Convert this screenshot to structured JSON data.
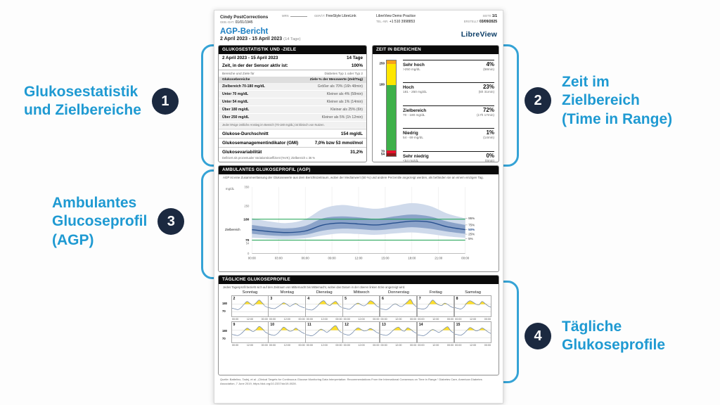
{
  "annotations": {
    "a1": {
      "number": "1",
      "lines": [
        "Glukosestatistik",
        "und Zielbereiche"
      ]
    },
    "a2": {
      "number": "2",
      "lines": [
        "Zeit im",
        "Zielbereich",
        "(Time in Range)"
      ]
    },
    "a3": {
      "number": "3",
      "lines": [
        "Ambulantes",
        "Glucoseprofil",
        "(AGP)"
      ]
    },
    "a4": {
      "number": "4",
      "lines": [
        "Tägliche",
        "Glukoseprofile"
      ]
    }
  },
  "colors": {
    "annotation_blue": "#1f9ad2",
    "bracket_blue": "#35a3d6",
    "badge_navy": "#1b2940",
    "title_blue": "#1a7ec2",
    "logo_navy": "#0b3d66",
    "very_high_orange": "#f7a21b",
    "high_yellow": "#ffe600",
    "target_green": "#3eb049",
    "low_red": "#e8112d",
    "very_low_maroon": "#8e1b1b",
    "median_blue": "#27508e"
  },
  "report_header": {
    "patient_name": "Cindy PostCorrections",
    "dob_label": "GEB.-DAT.",
    "dob": "01/01/1945",
    "mrn_label": "MRN",
    "device_label": "GERÄT:",
    "device": "FreeStyle LibreLink",
    "practice": "LibreView Demo Practice",
    "phone_label": "TEL.-NR.",
    "phone": "+1 510 3998853",
    "page_label": "SEITE",
    "page_value": "1/1",
    "created_label": "ERSTELLT",
    "created_value": "03/09/2025",
    "logo": "LibreView"
  },
  "title": {
    "heading": "AGP-Bericht",
    "date_range": "2 April 2023 - 15 April 2023",
    "days": "(14 Tage)"
  },
  "stats": {
    "header": "GLUKOSESTATISTIK UND -ZIELE",
    "range_row": {
      "label": "2 April 2023 - 15 April 2023",
      "value": "14 Tage"
    },
    "sensor_row": {
      "label": "Zeit, in der der Sensor aktiv ist:",
      "value": "100%"
    },
    "table": {
      "caption_left": "Bereiche und Ziele für",
      "caption_right": "Diabetes Typ 1 oder Typ 2",
      "col_left": "Glukosebereiche",
      "col_right": "Ziele % der Messwerte (Zeit/Tag)",
      "rows": [
        {
          "label": "Zielbereich 70-180 mg/dL",
          "value": "Größer als 70% (16h 48min)"
        },
        {
          "label": "Unter 70 mg/dL",
          "value": "Kleiner als 4% (58min)"
        },
        {
          "label": "Unter 54 mg/dL",
          "value": "Kleiner als 1% (14min)"
        },
        {
          "label": "Über 180 mg/dL",
          "value": "Kleiner als 25% (6h)"
        },
        {
          "label": "Über 250 mg/dL",
          "value": "Kleiner als 5% (1h 12min)"
        }
      ],
      "note": "Jeder 5%ige zeitliche Anstieg im Bereich (70-180 mg/dL) ist klinisch von Nutzen."
    },
    "metrics": [
      {
        "label": "Glukose-Durchschnitt",
        "value": "154 mg/dL"
      },
      {
        "label": "Glukosemanagementindikator (GMI)",
        "value": "7,0% bzw 53 mmol/mol"
      },
      {
        "label": "Glukosevariabilität",
        "value": "31,2%"
      }
    ],
    "footnote": "Definiert als prozentualer Variationskoeffizient (%VK); Zielbereich ≤ 36 %"
  },
  "tir": {
    "header": "ZEIT IN BEREICHEN",
    "entries": [
      {
        "name": "Sehr hoch",
        "range": ">250 mg/dL",
        "pct": "4%",
        "time": "(58min)"
      },
      {
        "name": "Hoch",
        "range": "181 - 250 mg/dL",
        "pct": "23%",
        "time": "(5h 31min)"
      },
      {
        "name": "Zielbereich",
        "range": "70 - 180 mg/dL",
        "pct": "72%",
        "time": "(17h 17min)"
      },
      {
        "name": "Niedrig",
        "range": "54 - 69 mg/dL",
        "pct": "1%",
        "time": "(14min)"
      },
      {
        "name": "Sehr niedrig",
        "range": "<54 mg/dL",
        "pct": "0%",
        "time": "(0min)"
      }
    ]
  },
  "agp": {
    "header": "AMBULANTES GLUKOSEPROFIL (AGP)",
    "description": "AGP ist eine Zusammenfassung der Glukosewerte aus dem Berichtszeitraum, wobei der Medianwert (50 %) und andere Perzentile angezeigt werden, als befänden sie an einem einzigen Tag.",
    "unit": "mg/dL",
    "target_label": "Zielbereich"
  },
  "daily": {
    "header": "TÄGLICHE GLUKOSEPROFILE",
    "note": "Jedes Tagesprofil bezieht sich auf den Zeitraum von Mitternacht bis Mitternacht, wobei das Datum in der oberen linken Ecke angezeigt wird.",
    "weekdays": [
      "Sonntag",
      "Montag",
      "Dienstag",
      "Mittwoch",
      "Donnerstag",
      "Freitag",
      "Samstag"
    ],
    "y_labels": [
      "180",
      "70"
    ],
    "x_labels": [
      "00:00",
      "12:00",
      "00:00"
    ]
  },
  "citation": "Quelle: Battelino, Tadej, et al. „Clinical Targets for Continuous Glucose Monitoring Data Interpretation: Recommendations From the International Consensus on Time in Range.“ Diabetes Care, American Diabetes Association, 7 June 2019, https://doi.org/10.2337/dci19-0028.",
  "chart_data": [
    {
      "id": "tir",
      "type": "bar",
      "title": "Zeit in Bereichen",
      "categories": [
        "Sehr hoch (>250 mg/dL)",
        "Hoch (181-250 mg/dL)",
        "Zielbereich (70-180 mg/dL)",
        "Niedrig (54-69 mg/dL)",
        "Sehr niedrig (<54 mg/dL)"
      ],
      "values": [
        4,
        23,
        72,
        1,
        0
      ],
      "unit": "percent of time",
      "colors": [
        "#f7a21b",
        "#ffe600",
        "#3eb049",
        "#e8112d",
        "#8e1b1b"
      ],
      "thresholds": [
        "250",
        "180",
        "70",
        "54"
      ],
      "legend_position": "right"
    },
    {
      "id": "agp",
      "type": "area",
      "title": "Ambulantes Glukoseprofil (AGP)",
      "x_hours": [
        0,
        2,
        4,
        6,
        8,
        10,
        12,
        14,
        16,
        18,
        20,
        22,
        24
      ],
      "percentiles": {
        "p5": [
          82,
          78,
          75,
          80,
          95,
          105,
          102,
          98,
          105,
          110,
          102,
          90,
          82
        ],
        "p25": [
          103,
          95,
          92,
          98,
          120,
          130,
          128,
          122,
          130,
          138,
          130,
          115,
          103
        ],
        "p50": [
          125,
          115,
          110,
          118,
          150,
          160,
          155,
          150,
          160,
          170,
          165,
          140,
          125
        ],
        "p75": [
          150,
          138,
          132,
          145,
          185,
          195,
          190,
          182,
          195,
          205,
          195,
          168,
          150
        ],
        "p95": [
          185,
          168,
          160,
          180,
          235,
          255,
          245,
          235,
          250,
          265,
          250,
          210,
          185
        ]
      },
      "ylim": [
        0,
        350
      ],
      "yticks": [
        350,
        250,
        180,
        70,
        54,
        0
      ],
      "xticks": [
        "00:00",
        "03:00",
        "06:00",
        "09:00",
        "12:00",
        "15:00",
        "18:00",
        "21:00",
        "00:00"
      ],
      "target_range": [
        70,
        180
      ],
      "band_labels": [
        "95%",
        "75%",
        "50%",
        "25%",
        "5%"
      ],
      "grid": true
    },
    {
      "id": "daily",
      "type": "line",
      "title": "Tägliche Glukoseprofile",
      "ylim": [
        0,
        300
      ],
      "target_range": [
        70,
        180
      ],
      "days": [
        {
          "label": "2",
          "values": [
            120,
            110,
            100,
            130,
            180,
            220,
            190,
            160,
            200,
            240,
            200,
            150,
            130
          ]
        },
        {
          "label": "3",
          "values": [
            130,
            120,
            115,
            140,
            170,
            200,
            180,
            150,
            170,
            190,
            160,
            140,
            125
          ]
        },
        {
          "label": "4",
          "values": [
            110,
            100,
            95,
            120,
            160,
            210,
            230,
            180,
            160,
            200,
            220,
            160,
            130
          ]
        },
        {
          "label": "5",
          "values": [
            125,
            115,
            105,
            135,
            175,
            195,
            170,
            155,
            185,
            230,
            210,
            160,
            135
          ]
        },
        {
          "label": "6",
          "values": [
            115,
            105,
            100,
            125,
            165,
            185,
            160,
            145,
            175,
            215,
            250,
            180,
            140
          ]
        },
        {
          "label": "7",
          "values": [
            120,
            112,
            108,
            130,
            190,
            240,
            200,
            170,
            160,
            195,
            175,
            145,
            125
          ]
        },
        {
          "label": "8",
          "values": [
            130,
            118,
            110,
            140,
            200,
            230,
            210,
            180,
            170,
            220,
            190,
            155,
            135
          ]
        },
        {
          "label": "9",
          "values": [
            118,
            108,
            102,
            128,
            170,
            210,
            185,
            160,
            190,
            235,
            205,
            155,
            130
          ]
        },
        {
          "label": "10",
          "values": [
            125,
            110,
            105,
            132,
            180,
            225,
            195,
            165,
            175,
            210,
            180,
            150,
            128
          ]
        },
        {
          "label": "11",
          "values": [
            115,
            105,
            98,
            122,
            160,
            195,
            175,
            150,
            180,
            225,
            245,
            175,
            140
          ]
        },
        {
          "label": "12",
          "values": [
            128,
            115,
            108,
            138,
            185,
            215,
            190,
            168,
            178,
            205,
            185,
            152,
            132
          ]
        },
        {
          "label": "13",
          "values": [
            120,
            110,
            104,
            126,
            168,
            205,
            225,
            185,
            165,
            215,
            195,
            158,
            134
          ]
        },
        {
          "label": "14",
          "values": [
            112,
            104,
            100,
            124,
            162,
            190,
            170,
            148,
            172,
            208,
            230,
            170,
            138
          ]
        },
        {
          "label": "15",
          "values": [
            122,
            112,
            106,
            134,
            178,
            218,
            198,
            170,
            182,
            212,
            188,
            154,
            130
          ]
        }
      ]
    }
  ]
}
